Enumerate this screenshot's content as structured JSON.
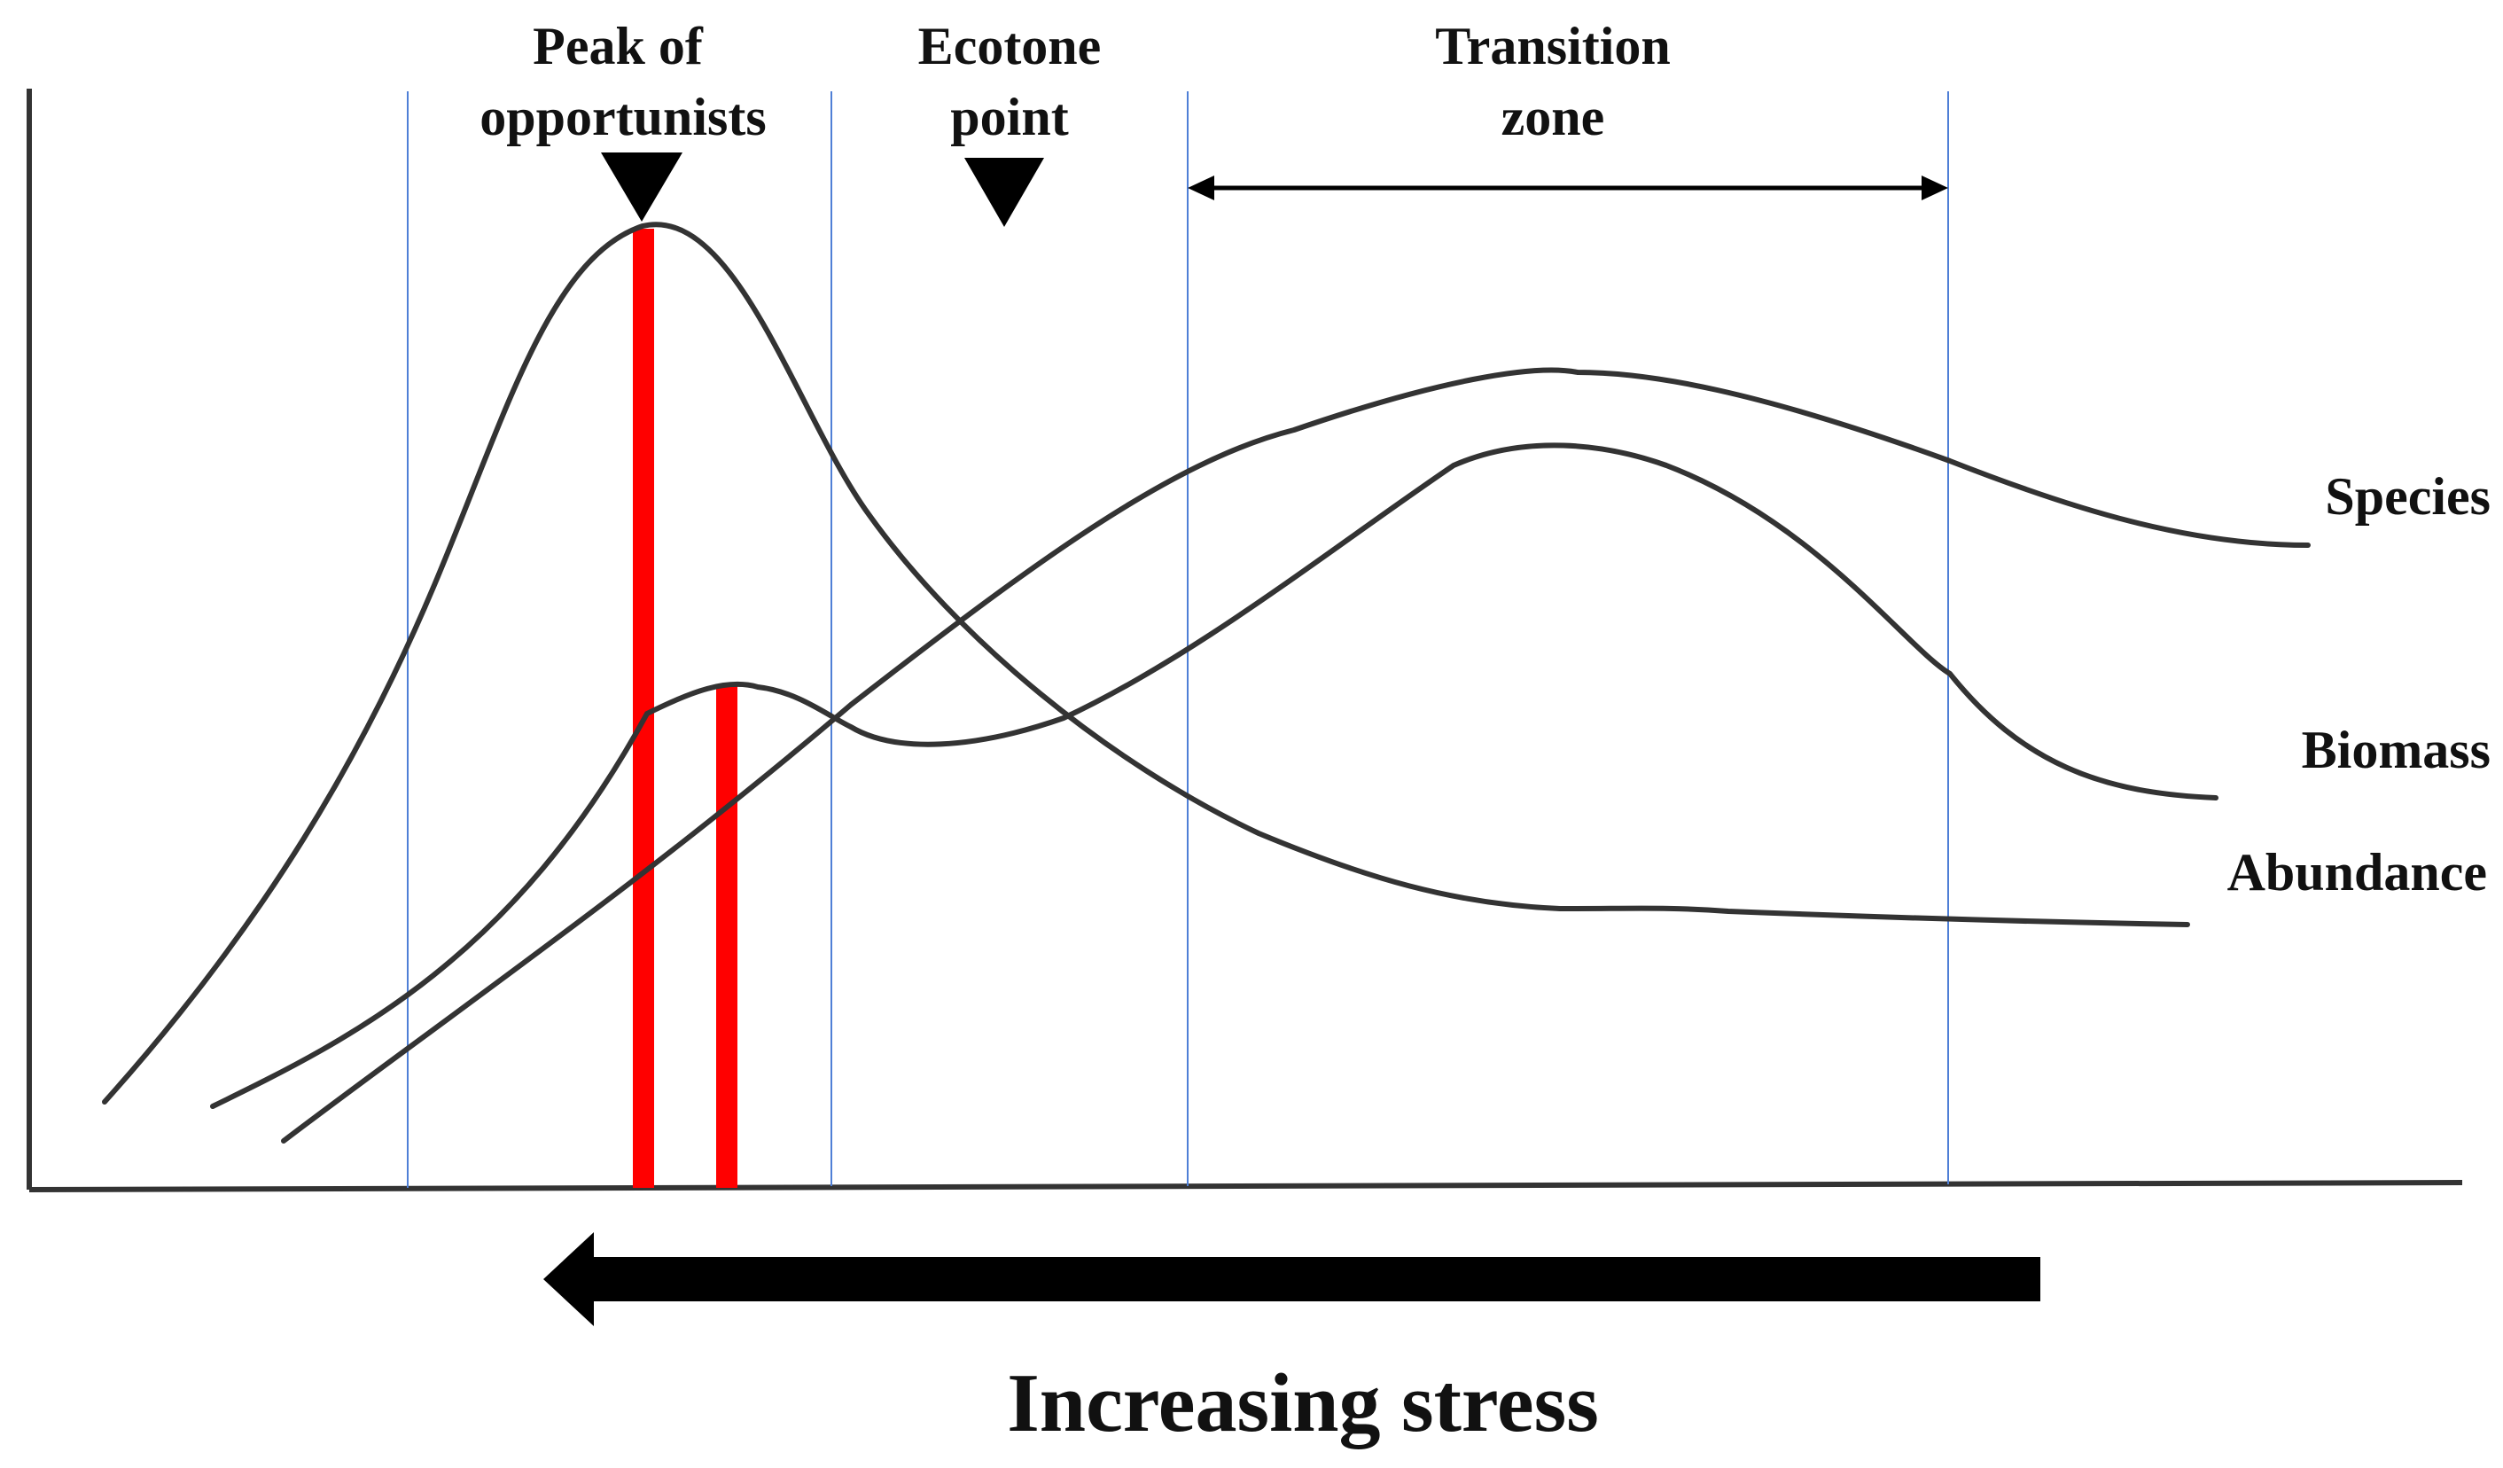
{
  "labels": {
    "peak_line1": "Peak of",
    "peak_line2": "opportunists",
    "ecotone_line1": "Ecotone",
    "ecotone_line2": "point",
    "transition_line1": "Transition",
    "transition_line2": "zone",
    "species": "Species",
    "biomass": "Biomass",
    "abundance": "Abundance",
    "stress": "Increasing stress"
  },
  "colors": {
    "curve": "#333333",
    "axis": "#333333",
    "guide": "#4f7fd6",
    "marker": "#ff0000",
    "arrow": "#000000",
    "text": "#111111"
  }
}
